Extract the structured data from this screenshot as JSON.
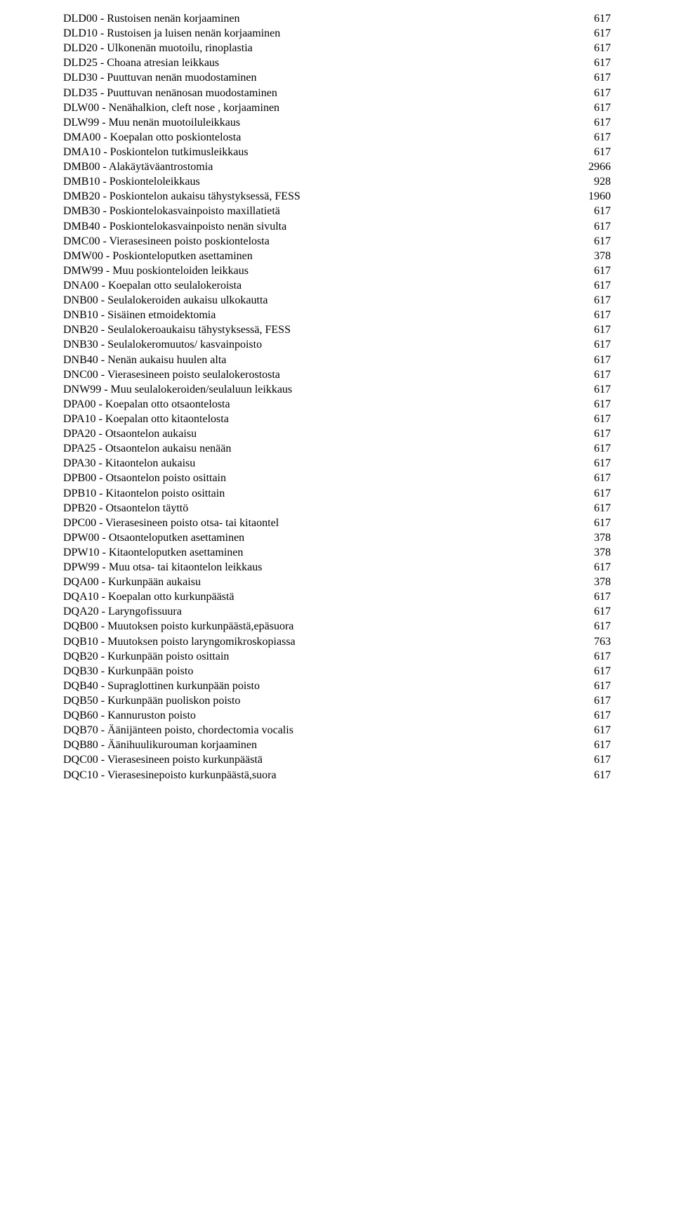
{
  "rows": [
    {
      "label": "DLD00 - Rustoisen nenän korjaaminen",
      "value": "617"
    },
    {
      "label": "DLD10 - Rustoisen ja luisen nenän korjaaminen",
      "value": "617"
    },
    {
      "label": "DLD20 - Ulkonenän muotoilu, rinoplastia",
      "value": "617"
    },
    {
      "label": "DLD25 - Choana atresian leikkaus",
      "value": "617"
    },
    {
      "label": "DLD30 - Puuttuvan nenän muodostaminen",
      "value": "617"
    },
    {
      "label": "DLD35 - Puuttuvan nenänosan muodostaminen",
      "value": "617"
    },
    {
      "label": "DLW00 - Nenähalkion, cleft nose , korjaaminen",
      "value": "617"
    },
    {
      "label": "DLW99 - Muu nenän muotoiluleikkaus",
      "value": "617"
    },
    {
      "label": "DMA00 - Koepalan otto poskiontelosta",
      "value": "617"
    },
    {
      "label": "DMA10 - Poskiontelon tutkimusleikkaus",
      "value": "617"
    },
    {
      "label": "DMB00 - Alakäytäväantrostomia",
      "value": "2966"
    },
    {
      "label": "DMB10 - Poskionteloleikkaus",
      "value": "928"
    },
    {
      "label": "DMB20 - Poskiontelon aukaisu tähystyksessä, FESS",
      "value": "1960"
    },
    {
      "label": "DMB30 - Poskiontelokasvainpoisto maxillatietä",
      "value": "617"
    },
    {
      "label": "DMB40 - Poskiontelokasvainpoisto nenän sivulta",
      "value": "617"
    },
    {
      "label": "DMC00 - Vierasesineen poisto poskiontelosta",
      "value": "617"
    },
    {
      "label": "DMW00 - Poskionteloputken asettaminen",
      "value": "378"
    },
    {
      "label": "DMW99 - Muu poskionteloiden leikkaus",
      "value": "617"
    },
    {
      "label": "DNA00 - Koepalan otto seulalokeroista",
      "value": "617"
    },
    {
      "label": "DNB00 - Seulalokeroiden aukaisu ulkokautta",
      "value": "617"
    },
    {
      "label": "DNB10 - Sisäinen etmoidektomia",
      "value": "617"
    },
    {
      "label": "DNB20 - Seulalokeroaukaisu tähystyksessä, FESS",
      "value": "617"
    },
    {
      "label": "DNB30 - Seulalokeromuutos/ kasvainpoisto",
      "value": "617"
    },
    {
      "label": "DNB40 - Nenän aukaisu huulen alta",
      "value": "617"
    },
    {
      "label": "DNC00 - Vierasesineen poisto seulalokerostosta",
      "value": "617"
    },
    {
      "label": "DNW99 - Muu seulalokeroiden/seulaluun leikkaus",
      "value": "617"
    },
    {
      "label": "DPA00 - Koepalan otto otsaontelosta",
      "value": "617"
    },
    {
      "label": "DPA10 - Koepalan otto kitaontelosta",
      "value": "617"
    },
    {
      "label": "DPA20 - Otsaontelon aukaisu",
      "value": "617"
    },
    {
      "label": "DPA25 - Otsaontelon aukaisu nenään",
      "value": "617"
    },
    {
      "label": "DPA30 - Kitaontelon aukaisu",
      "value": "617"
    },
    {
      "label": "DPB00 - Otsaontelon poisto osittain",
      "value": "617"
    },
    {
      "label": "DPB10 - Kitaontelon poisto osittain",
      "value": "617"
    },
    {
      "label": "DPB20 - Otsaontelon täyttö",
      "value": "617"
    },
    {
      "label": "DPC00 - Vierasesineen poisto otsa- tai kitaontel",
      "value": "617"
    },
    {
      "label": "DPW00 - Otsaonteloputken asettaminen",
      "value": "378"
    },
    {
      "label": "DPW10 - Kitaonteloputken asettaminen",
      "value": "378"
    },
    {
      "label": "DPW99 - Muu otsa- tai kitaontelon leikkaus",
      "value": "617"
    },
    {
      "label": "DQA00 - Kurkunpään aukaisu",
      "value": "378"
    },
    {
      "label": "DQA10 - Koepalan otto kurkunpäästä",
      "value": "617"
    },
    {
      "label": "DQA20 - Laryngofissuura",
      "value": "617"
    },
    {
      "label": "DQB00 - Muutoksen poisto kurkunpäästä,epäsuora",
      "value": "617"
    },
    {
      "label": "DQB10 - Muutoksen poisto laryngomikroskopiassa",
      "value": "763"
    },
    {
      "label": "DQB20 - Kurkunpään poisto osittain",
      "value": "617"
    },
    {
      "label": "DQB30 - Kurkunpään poisto",
      "value": "617"
    },
    {
      "label": "DQB40 - Supraglottinen kurkunpään poisto",
      "value": "617"
    },
    {
      "label": "DQB50 - Kurkunpään puoliskon poisto",
      "value": "617"
    },
    {
      "label": "DQB60 - Kannuruston poisto",
      "value": "617"
    },
    {
      "label": "DQB70 - Äänijänteen poisto, chordectomia vocalis",
      "value": "617"
    },
    {
      "label": "DQB80 - Äänihuulikurouman korjaaminen",
      "value": "617"
    },
    {
      "label": "DQC00 - Vierasesineen poisto kurkunpäästä",
      "value": "617"
    },
    {
      "label": "DQC10 - Vierasesinepoisto kurkunpäästä,suora",
      "value": "617"
    }
  ]
}
